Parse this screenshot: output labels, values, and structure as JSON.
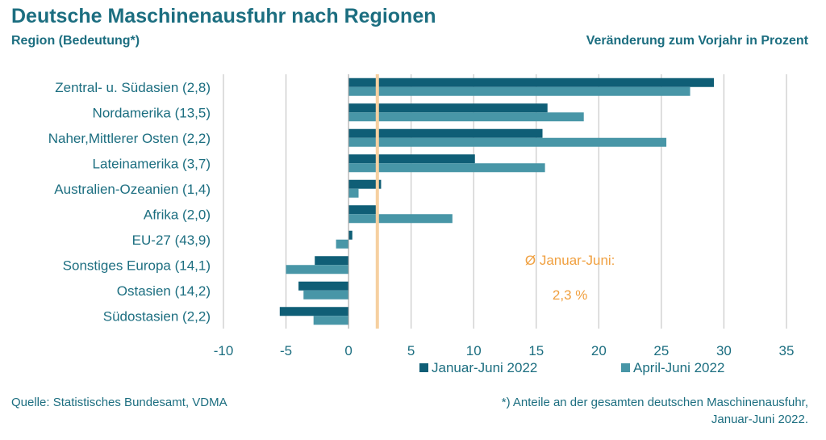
{
  "header": {
    "title": "Deutsche Maschinenausfuhr nach Regionen",
    "subtitle_left": "Region (Bedeutung*)",
    "subtitle_right": "Veränderung zum Vorjahr in Prozent"
  },
  "footer": {
    "source": "Quelle: Statistisches Bundesamt, VDMA",
    "note_line1": "*) Anteile an der gesamten deutschen Maschinenausfuhr,",
    "note_line2": "Januar-Juni 2022."
  },
  "colors": {
    "text": "#1c6e80",
    "series1": "#0f5e76",
    "series2": "#4896a7",
    "average": "#f6d0a0",
    "average_text": "#f0a040",
    "grid": "#c8c8c8"
  },
  "chart_data": {
    "type": "bar",
    "orientation": "horizontal",
    "categories": [
      "Zentral- u. Südasien (2,8)",
      "Nordamerika (13,5)",
      "Naher,Mittlerer Osten (2,2)",
      "Lateinamerika (3,7)",
      "Australien-Ozeanien (1,4)",
      "Afrika (2,0)",
      "EU-27 (43,9)",
      "Sonstiges Europa (14,1)",
      "Ostasien (14,2)",
      "Südostasien (2,2)"
    ],
    "series": [
      {
        "name": "Januar-Juni 2022",
        "values": [
          29.2,
          15.9,
          15.5,
          10.1,
          2.6,
          2.4,
          0.3,
          -2.7,
          -4.0,
          -5.5
        ]
      },
      {
        "name": "April-Juni 2022",
        "values": [
          27.3,
          18.8,
          25.4,
          15.7,
          0.8,
          8.3,
          -1.0,
          -5.0,
          -3.6,
          -2.8
        ]
      }
    ],
    "xlim": [
      -10,
      35
    ],
    "xticks": [
      -10,
      -5,
      0,
      5,
      10,
      15,
      20,
      25,
      30,
      35
    ],
    "grid": true,
    "average": {
      "value": 2.3,
      "label_line1": "Ø Januar-Juni:",
      "label_line2": "2,3 %"
    },
    "legend": "bottom"
  }
}
